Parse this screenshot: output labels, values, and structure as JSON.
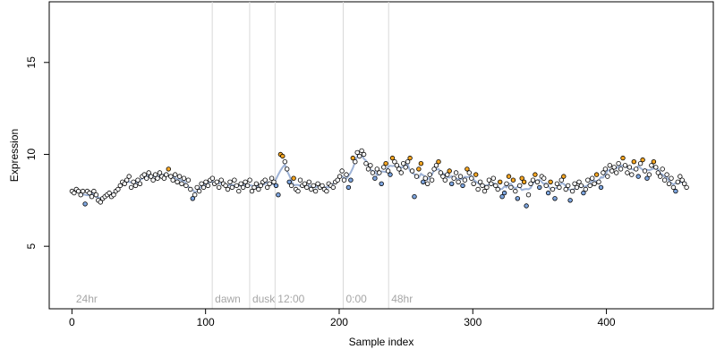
{
  "chart_data": {
    "type": "scatter",
    "xlabel": "Sample index",
    "ylabel": "Expression",
    "xlim": [
      -17,
      480
    ],
    "ylim": [
      1.6,
      18.3
    ],
    "x_ticks": [
      "0",
      "100",
      "200",
      "300",
      "400"
    ],
    "y_ticks": [
      "5",
      "10",
      "15"
    ],
    "annotations": [
      {
        "x": 105,
        "label": "dawn"
      },
      {
        "x": 133,
        "label": "dusk"
      },
      {
        "x": 152,
        "label": "12:00"
      },
      {
        "x": 203,
        "label": "0:00"
      },
      {
        "x": 237,
        "label": "48hr"
      }
    ],
    "corner_label": "24hr",
    "colors": {
      "point_default": "#ffffff",
      "point_warm": "#f5a623",
      "point_cool": "#7ea6e0",
      "line_cool": "#7c98c8",
      "line_warm": "#f0b050",
      "guide": "#d9d9d9",
      "annotation": "#a6a6a6"
    },
    "series": [
      {
        "values": [
          8.0,
          7.9,
          8.1,
          8.0,
          7.8,
          8.0,
          7.3,
          8.0,
          7.9,
          7.7,
          8.0,
          7.8,
          7.5,
          7.4,
          7.6,
          7.7,
          7.8,
          7.9,
          7.7,
          7.8,
          8.0,
          8.1,
          8.3,
          8.5,
          8.4,
          8.6,
          8.8,
          8.2,
          8.5,
          8.3,
          8.6,
          8.4,
          8.8,
          8.9,
          8.7,
          9.0,
          8.8,
          8.6,
          8.9,
          8.7,
          9.0,
          8.8,
          8.7,
          8.9,
          9.2,
          8.8,
          8.6,
          8.9,
          8.5,
          8.8,
          8.4,
          8.7,
          8.3,
          8.6,
          8.1,
          7.6,
          7.8,
          8.2,
          8.0,
          8.4,
          8.2,
          8.5,
          8.3,
          8.6,
          8.7,
          8.4,
          8.5,
          8.2,
          8.6,
          8.4,
          8.3,
          8.1,
          8.5,
          8.2,
          8.6,
          8.3,
          8.0,
          8.4,
          8.2,
          8.5,
          8.3,
          8.6,
          8.0,
          8.2,
          8.4,
          8.1,
          8.3,
          8.5,
          8.6,
          8.2,
          8.4,
          8.7,
          8.5,
          8.3,
          7.8,
          10.0,
          9.9,
          9.6,
          9.2,
          8.5,
          8.3,
          8.7,
          8.1,
          8.0,
          8.6,
          8.3,
          8.4,
          8.2,
          8.5,
          8.1,
          8.3,
          8.0,
          8.4,
          8.2,
          8.3,
          8.1,
          8.0,
          8.4,
          8.3,
          8.2,
          8.5,
          8.6,
          8.8,
          9.1,
          8.6,
          8.9,
          8.2,
          8.6,
          9.8,
          9.6,
          10.1,
          9.9,
          10.2,
          10.0,
          9.5,
          9.2,
          9.4,
          9.0,
          8.7,
          9.2,
          9.0,
          8.4,
          9.3,
          9.5,
          9.1,
          8.9,
          9.8,
          9.6,
          9.4,
          9.2,
          9.0,
          9.5,
          9.3,
          9.6,
          9.8,
          9.1,
          7.7,
          8.8,
          9.2,
          9.5,
          8.5,
          8.7,
          8.4,
          8.9,
          8.6,
          9.2,
          9.4,
          9.6,
          9.0,
          8.8,
          8.6,
          8.9,
          9.1,
          8.4,
          8.7,
          9.0,
          8.5,
          8.8,
          8.3,
          8.6,
          9.2,
          9.0,
          8.7,
          8.4,
          8.9,
          8.1,
          8.5,
          8.3,
          8.0,
          8.2,
          8.6,
          8.4,
          8.7,
          8.3,
          8.1,
          8.5,
          7.7,
          7.9,
          8.4,
          8.8,
          8.2,
          8.6,
          8.0,
          7.6,
          8.3,
          8.7,
          8.5,
          7.2,
          7.8,
          8.4,
          8.6,
          8.9,
          8.5,
          8.2,
          8.8,
          8.7,
          8.3,
          7.9,
          8.5,
          8.1,
          7.6,
          8.4,
          8.2,
          8.6,
          8.8,
          8.1,
          8.3,
          7.5,
          8.0,
          8.4,
          8.2,
          8.5,
          8.3,
          7.9,
          8.1,
          8.6,
          8.3,
          8.7,
          8.4,
          8.9,
          8.5,
          8.2,
          9.0,
          9.2,
          8.8,
          9.4,
          9.1,
          9.3,
          9.0,
          9.5,
          9.2,
          9.8,
          9.4,
          9.0,
          9.3,
          8.9,
          9.6,
          9.2,
          8.8,
          9.5,
          9.7,
          9.1,
          8.7,
          8.9,
          9.4,
          9.6,
          9.3,
          9.0,
          8.8,
          9.2,
          8.6,
          8.9,
          8.4,
          8.7,
          8.2,
          8.0,
          8.5,
          8.8,
          8.6,
          8.4,
          8.2
        ]
      }
    ]
  }
}
